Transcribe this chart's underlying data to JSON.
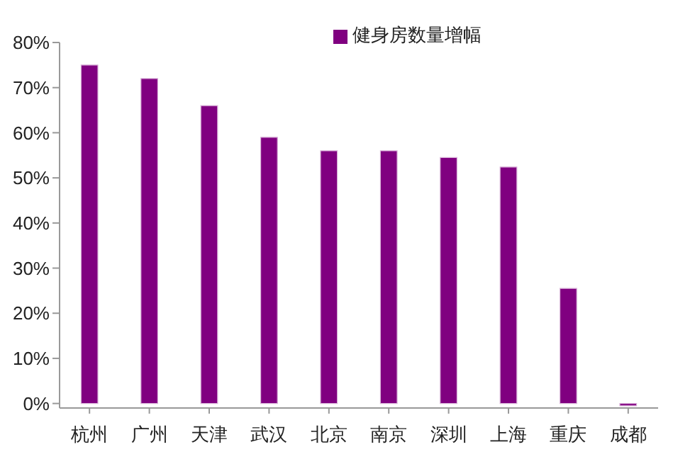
{
  "chart_data": {
    "type": "bar",
    "categories": [
      "杭州",
      "广州",
      "天津",
      "武汉",
      "北京",
      "南京",
      "深圳",
      "上海",
      "重庆",
      "成都"
    ],
    "series": [
      {
        "name": "健身房数量增幅",
        "color": "#800080",
        "values": [
          75,
          72,
          66,
          59,
          56,
          56,
          54.5,
          52.4,
          25.5,
          -0.5
        ]
      }
    ],
    "ylim": [
      -1,
      80
    ],
    "yticks": [
      {
        "value": 0,
        "label": "0%"
      },
      {
        "value": 10,
        "label": "10%"
      },
      {
        "value": 20,
        "label": "20%"
      },
      {
        "value": 30,
        "label": "30%"
      },
      {
        "value": 40,
        "label": "40%"
      },
      {
        "value": 50,
        "label": "50%"
      },
      {
        "value": 60,
        "label": "60%"
      },
      {
        "value": 70,
        "label": "70%"
      },
      {
        "value": 80,
        "label": "80%"
      }
    ],
    "grid": false,
    "legend": "top"
  }
}
